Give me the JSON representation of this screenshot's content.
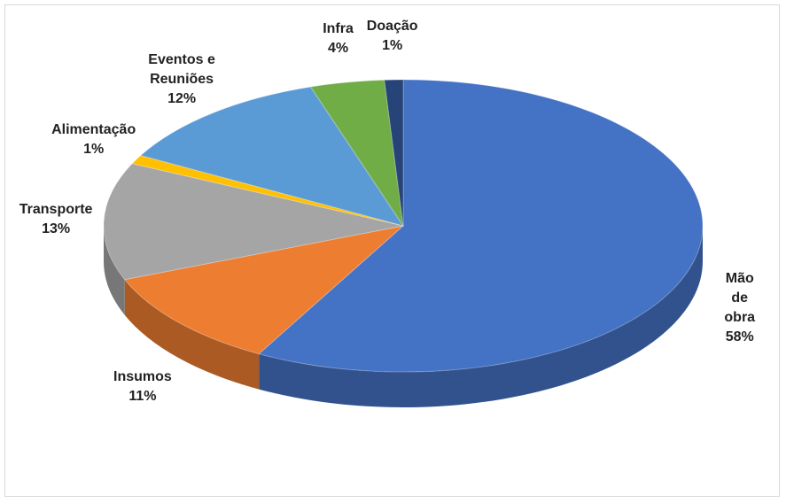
{
  "chart_data": {
    "type": "pie",
    "categories": [
      "Mão de obra",
      "Insumos",
      "Transporte",
      "Alimentação",
      "Eventos e Reuniões",
      "Infra",
      "Doação"
    ],
    "values": [
      58,
      11,
      13,
      1,
      12,
      4,
      1
    ],
    "value_labels": [
      "58%",
      "11%",
      "13%",
      "1%",
      "12%",
      "4%",
      "1%"
    ],
    "colors": [
      "#4472c4",
      "#ed7d31",
      "#a5a5a5",
      "#ffc000",
      "#5b9bd5",
      "#70ad47",
      "#264478"
    ]
  }
}
